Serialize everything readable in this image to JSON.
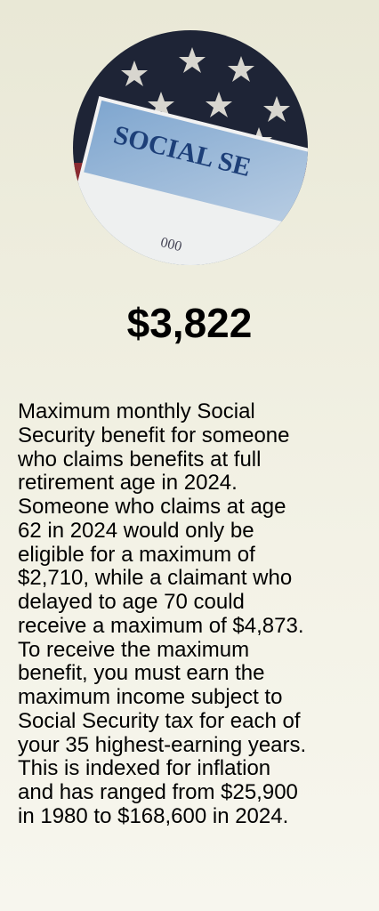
{
  "image": {
    "card_text": "SOCIAL SE",
    "card_number": "000"
  },
  "headline": "$3,822",
  "body_lines": [
    "Maximum monthly Social",
    "Security benefit for someone",
    "who claims benefits at full",
    "retirement age in 2024.",
    "Someone who claims at age",
    "62 in 2024 would only be",
    "eligible for a maximum of",
    "$2,710, while a claimant who",
    "delayed to age 70 could",
    "receive a maximum of $4,873.",
    "To receive the maximum",
    "benefit, you must earn the",
    "maximum income subject to",
    "Social Security tax for each of",
    "your 35 highest-earning years.",
    "This is indexed for inflation",
    "and has ranged from $25,900",
    "in 1980 to $168,600 in 2024."
  ]
}
